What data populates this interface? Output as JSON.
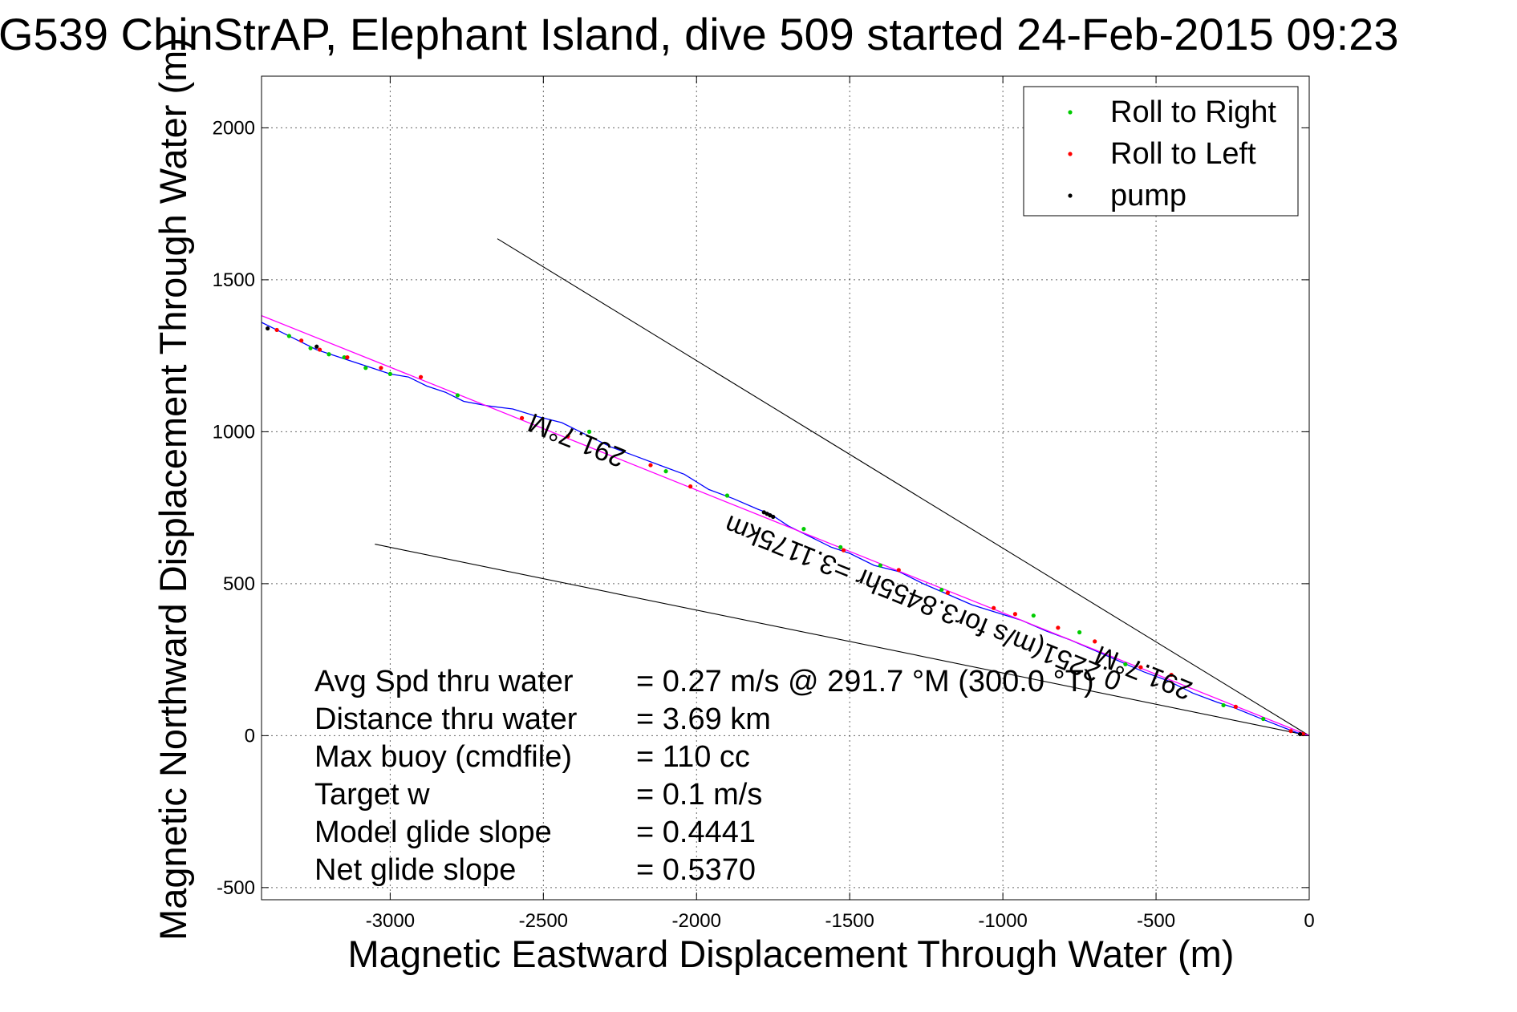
{
  "chart_data": {
    "type": "line",
    "title": "G539 ChinStrAP, Elephant Island, dive 509 started 24-Feb-2015 09:23",
    "xlabel": "Magnetic Eastward Displacement Through Water (m)",
    "ylabel": "Magnetic Northward Displacement Through Water (m)",
    "xlim": [
      -3420,
      0
    ],
    "ylim": [
      -540,
      2170
    ],
    "xticks": [
      -3000,
      -2500,
      -2000,
      -1500,
      -1000,
      -500,
      0
    ],
    "yticks": [
      -500,
      0,
      500,
      1000,
      1500,
      2000
    ],
    "xtick_labels": [
      "-3000",
      "-2500",
      "-2000",
      "-1500",
      "-1000",
      "-500",
      "0"
    ],
    "ytick_labels": [
      "-500",
      "0",
      "500",
      "1000",
      "1500",
      "2000"
    ],
    "grid": true,
    "legend": {
      "placement": "top-right",
      "entries": [
        {
          "label": "Roll to Right",
          "color": "#00cc00"
        },
        {
          "label": "Roll to Left",
          "color": "#ff0000"
        },
        {
          "label": "pump",
          "color": "#000000"
        }
      ]
    },
    "colors": {
      "track": "#0000ff",
      "heading_line": "#ff00ff",
      "current_lines": "#000000",
      "roll_right": "#00cc00",
      "roll_left": "#ff0000",
      "pump": "#000000"
    },
    "series": [
      {
        "name": "",
        "x": [
          0,
          -40,
          -80,
          -130,
          -180,
          -240,
          -300,
          -380,
          -460,
          -540,
          -620,
          -700,
          -780,
          -860,
          -940,
          -1020,
          -1100,
          -1180,
          -1260,
          -1340,
          -1420,
          -1500,
          -1560,
          -1620,
          -1700,
          -1760,
          -1800,
          -1880,
          -1960,
          -2040,
          -2120,
          -2200,
          -2280,
          -2360,
          -2440,
          -2520,
          -2600,
          -2680,
          -2760,
          -2820,
          -2880,
          -2940,
          -3000,
          -3060,
          -3120,
          -3180,
          -3240,
          -3300,
          -3360,
          -3420
        ],
        "y": [
          0,
          10,
          25,
          45,
          65,
          90,
          110,
          140,
          180,
          210,
          245,
          280,
          315,
          345,
          380,
          405,
          430,
          465,
          500,
          540,
          560,
          600,
          620,
          650,
          690,
          730,
          745,
          780,
          810,
          860,
          890,
          920,
          950,
          990,
          1030,
          1050,
          1075,
          1085,
          1100,
          1130,
          1150,
          1180,
          1190,
          1210,
          1230,
          1250,
          1270,
          1300,
          1330,
          1360
        ]
      },
      {
        "name": "",
        "x": [
          0,
          -3420
        ],
        "y": [
          0,
          1382
        ]
      },
      {
        "name": "",
        "x": [
          0,
          -2650
        ],
        "y": [
          0,
          1635
        ]
      },
      {
        "name": "",
        "x": [
          0,
          -3050
        ],
        "y": [
          0,
          630
        ]
      }
    ],
    "markers": {
      "roll_right": {
        "x": [
          -150,
          -280,
          -600,
          -750,
          -900,
          -1200,
          -1400,
          -1530,
          -1650,
          -1900,
          -2100,
          -2350,
          -2780,
          -3000,
          -3080,
          -3150,
          -3200,
          -3260,
          -3330
        ],
        "y": [
          55,
          100,
          235,
          340,
          395,
          480,
          560,
          620,
          680,
          790,
          870,
          1000,
          1120,
          1190,
          1210,
          1245,
          1255,
          1275,
          1315
        ]
      },
      "roll_left": {
        "x": [
          -20,
          -60,
          -240,
          -450,
          -550,
          -700,
          -820,
          -960,
          -1030,
          -1180,
          -1340,
          -1520,
          -2020,
          -2150,
          -2420,
          -2570,
          -2900,
          -3030,
          -3140,
          -3230,
          -3290,
          -3370
        ],
        "y": [
          5,
          15,
          95,
          200,
          225,
          310,
          355,
          400,
          420,
          470,
          545,
          610,
          820,
          890,
          985,
          1045,
          1180,
          1210,
          1245,
          1270,
          1300,
          1335
        ]
      },
      "pump": {
        "x": [
          -30,
          -1780,
          -1770,
          -1760,
          -1750,
          -3240,
          -3400
        ],
        "y": [
          5,
          735,
          730,
          725,
          720,
          1280,
          1340
        ]
      }
    },
    "annotations": [
      {
        "text": "291.7°M",
        "x": -2380,
        "y": 1000,
        "angle": 202
      },
      {
        "text": "0.2251(m/s for3.8455hr =3.1175km",
        "x": -1250,
        "y": 465,
        "angle": 202
      },
      {
        "text": "291.7°M",
        "x": -530,
        "y": 235,
        "angle": 202
      }
    ],
    "info_lines": [
      {
        "label": "Avg Spd thru water",
        "value": "=  0.27 m/s @ 291.7 °M (300.0 °T)"
      },
      {
        "label": "Distance thru water",
        "value": "=  3.69 km"
      },
      {
        "label": "Max buoy (cmdfile)",
        "value": "= 110 cc"
      },
      {
        "label": "Target w",
        "value": "= 0.1 m/s"
      },
      {
        "label": "Model glide slope",
        "value": "= 0.4441"
      },
      {
        "label": "Net glide slope",
        "value": "= 0.5370"
      }
    ]
  }
}
